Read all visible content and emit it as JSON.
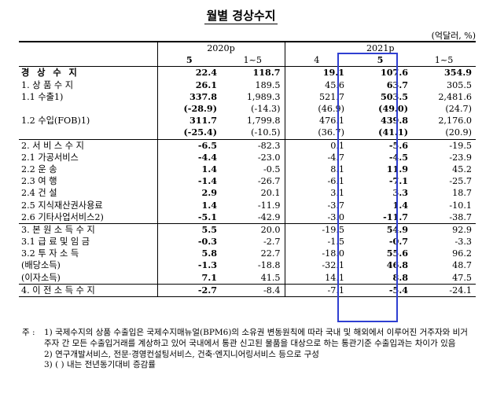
{
  "title": "월별 경상수지",
  "unit": "(억달러, %)",
  "header": {
    "year_2020": "2020p",
    "year_2021": "2021p",
    "months": [
      "5",
      "1~5",
      "4",
      "5",
      "1~5"
    ]
  },
  "rows": [
    {
      "label": "경 상 수 지",
      "values": [
        "22.4",
        "118.7",
        "19.1",
        "107.6",
        "354.9"
      ]
    },
    {
      "label": "1. 상 품 수 지",
      "values": [
        "26.1",
        "189.5",
        "45.6",
        "63.7",
        "305.5"
      ]
    },
    {
      "label": "1.1  수출1)",
      "values": [
        "337.8",
        "1,989.3",
        "521.7",
        "503.5",
        "2,481.6"
      ]
    },
    {
      "label": "",
      "values": [
        "(-28.9)",
        "(-14.3)",
        "(46.9)",
        "(49.0)",
        "(24.7)"
      ]
    },
    {
      "label": "1.2  수입(FOB)1)",
      "values": [
        "311.7",
        "1,799.8",
        "476.1",
        "439.8",
        "2,176.0"
      ]
    },
    {
      "label": "",
      "values": [
        "(-25.4)",
        "(-10.5)",
        "(36.7)",
        "(41.1)",
        "(20.9)"
      ]
    },
    {
      "label": "2. 서 비 스 수 지",
      "values": [
        "-6.5",
        "-82.3",
        "0.1",
        "-5.6",
        "-19.5"
      ]
    },
    {
      "label": "2.1  가공서비스",
      "values": [
        "-4.4",
        "-23.0",
        "-4.7",
        "-4.5",
        "-23.9"
      ]
    },
    {
      "label": "2.2  운        송",
      "values": [
        "1.4",
        "-0.5",
        "8.1",
        "11.9",
        "45.2"
      ]
    },
    {
      "label": "2.3  여        행",
      "values": [
        "-1.4",
        "-26.7",
        "-6.1",
        "-7.1",
        "-25.7"
      ]
    },
    {
      "label": "2.4  건        설",
      "values": [
        "2.9",
        "20.1",
        "3.1",
        "3.3",
        "18.7"
      ]
    },
    {
      "label": "2.5  지식재산권사용료",
      "values": [
        "1.4",
        "-11.9",
        "-3.7",
        "1.4",
        "-10.1"
      ]
    },
    {
      "label": "2.6  기타사업서비스2)",
      "values": [
        "-5.1",
        "-42.9",
        "-3.0",
        "-11.7",
        "-38.7"
      ]
    },
    {
      "label": "3. 본 원 소 득 수 지",
      "values": [
        "5.5",
        "20.0",
        "-19.5",
        "54.9",
        "92.9"
      ]
    },
    {
      "label": "3.1  급 료 및 임 금",
      "values": [
        "-0.3",
        "-2.7",
        "-1.5",
        "-0.7",
        "-3.3"
      ]
    },
    {
      "label": "3.2  투  자  소  득",
      "values": [
        "5.8",
        "22.7",
        "-18.0",
        "55.6",
        "96.2"
      ]
    },
    {
      "label": "(배당소득)",
      "values": [
        "-1.3",
        "-18.8",
        "-32.1",
        "46.8",
        "48.7"
      ]
    },
    {
      "label": "(이자소득)",
      "values": [
        "7.1",
        "41.5",
        "14.1",
        "8.8",
        "47.5"
      ]
    },
    {
      "label": "4. 이 전 소 득 수 지",
      "values": [
        "-2.7",
        "-8.4",
        "-7.1",
        "-5.4",
        "-24.1"
      ]
    }
  ],
  "notes": {
    "lead": "주 :",
    "n1": "1) 국제수지의 상품 수출입은 국제수지매뉴얼(BPM6)의 소유권 변동원칙에 따라 국내 및 해외에서 이루어진 거주자와 비거주자 간 모든 수출입거래를 계상하고 있어 국내에서 통관 신고된 물품을 대상으로 하는 통관기준 수출입과는 차이가 있음",
    "n2": "2) 연구개발서비스, 전문·경영컨설팅서비스, 건축·엔지니어링서비스 등으로 구성",
    "n3": "3) ( ) 내는 전년동기대비 증감률"
  },
  "colors": {
    "highlight_box": "#2f3fd1"
  }
}
